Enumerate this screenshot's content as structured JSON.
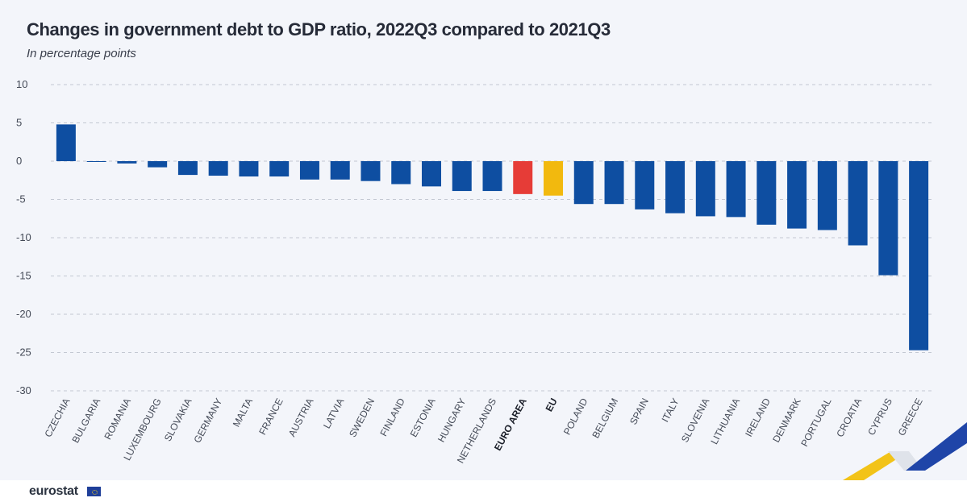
{
  "chart_data": {
    "type": "bar",
    "title": "Changes in government debt to GDP ratio, 2022Q3 compared to 2021Q3",
    "subtitle": "In percentage points",
    "xlabel": "",
    "ylabel": "",
    "ylim": [
      -30,
      10
    ],
    "yticks": [
      10,
      5,
      0,
      -5,
      -10,
      -15,
      -20,
      -25,
      -30
    ],
    "grid": true,
    "legend": "none",
    "categories": [
      "CZECHIA",
      "BULGARIA",
      "ROMANIA",
      "LUXEMBOURG",
      "SLOVAKIA",
      "GERMANY",
      "MALTA",
      "FRANCE",
      "AUSTRIA",
      "LATVIA",
      "SWEDEN",
      "FINLAND",
      "ESTONIA",
      "HUNGARY",
      "NETHERLANDS",
      "EURO AREA",
      "EU",
      "POLAND",
      "BELGIUM",
      "SPAIN",
      "ITALY",
      "SLOVENIA",
      "LITHUANIA",
      "IRELAND",
      "DENMARK",
      "PORTUGAL",
      "CROATIA",
      "CYPRUS",
      "GREECE"
    ],
    "values": [
      4.8,
      -0.1,
      -0.3,
      -0.8,
      -1.8,
      -1.9,
      -2.0,
      -2.0,
      -2.4,
      -2.4,
      -2.6,
      -3.0,
      -3.3,
      -3.9,
      -3.9,
      -4.3,
      -4.5,
      -5.6,
      -5.6,
      -6.3,
      -6.8,
      -7.2,
      -7.3,
      -8.3,
      -8.8,
      -9.0,
      -11.0,
      -14.9,
      -24.7
    ],
    "highlight": {
      "EURO AREA": "#e63c37",
      "EU": "#f2b90e"
    },
    "bold_categories": [
      "EURO AREA",
      "EU"
    ],
    "colors": {
      "default_bar": "#0e4ea1",
      "grid": "#c3c8d2",
      "text": "#444a57"
    }
  },
  "branding": {
    "logo_text": "eurostat",
    "logo_icon": "eu-flag-icon"
  }
}
